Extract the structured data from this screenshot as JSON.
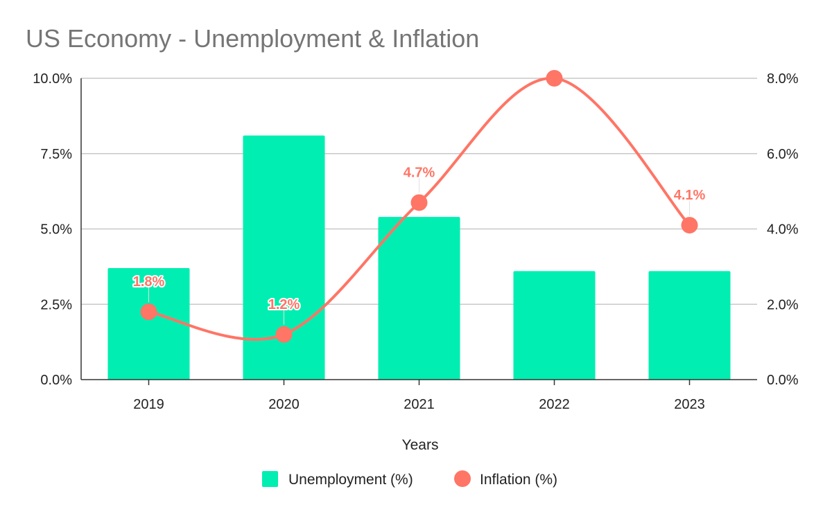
{
  "chart_data": {
    "type": "bar+line",
    "title": "US Economy - Unemployment & Inflation",
    "xlabel": "Years",
    "categories": [
      "2019",
      "2020",
      "2021",
      "2022",
      "2023"
    ],
    "series": [
      {
        "name": "Unemployment (%)",
        "type": "bar",
        "axis": "left",
        "color": "#00eeb1",
        "values": [
          3.7,
          8.1,
          5.4,
          3.6,
          3.6
        ]
      },
      {
        "name": "Inflation (%)",
        "type": "line",
        "smooth": true,
        "axis": "right",
        "color": "#ff7566",
        "values": [
          1.8,
          1.2,
          4.7,
          8.0,
          4.1
        ],
        "data_labels": [
          "1.8%",
          "1.2%",
          "4.7%",
          null,
          "4.1%"
        ]
      }
    ],
    "y_left": {
      "range": [
        0,
        10
      ],
      "ticks": [
        "0.0%",
        "2.5%",
        "5.0%",
        "7.5%",
        "10.0%"
      ]
    },
    "y_right": {
      "range": [
        0,
        8
      ],
      "ticks": [
        "0.0%",
        "2.0%",
        "4.0%",
        "6.0%",
        "8.0%"
      ]
    },
    "grid": true,
    "legend": "bottom"
  }
}
